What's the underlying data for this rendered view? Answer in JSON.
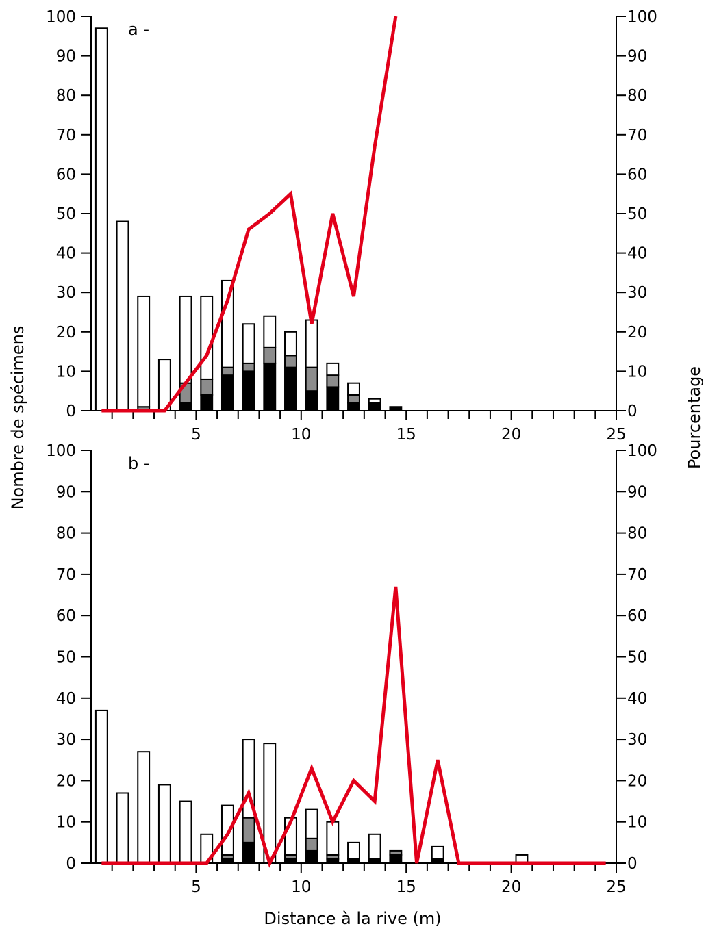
{
  "figure": {
    "ylabel_left": "Nombre de spécimens",
    "ylabel_right": "Pourcentage",
    "xlabel": "Distance à la rive (m)",
    "colors": {
      "line": "#e2001a",
      "bar_black": "#000000",
      "bar_gray": "#8c8c8c",
      "bar_white": "#ffffff"
    }
  },
  "chart_data": [
    {
      "type": "bar",
      "label": "a -",
      "x_ticks": [
        5,
        10,
        15,
        20,
        25
      ],
      "y_ticks": [
        0,
        10,
        20,
        30,
        40,
        50,
        60,
        70,
        80,
        90,
        100
      ],
      "xlim": [
        0,
        25
      ],
      "ylim_left": [
        0,
        100
      ],
      "ylim_right": [
        0,
        100
      ],
      "bars": {
        "x": [
          0.5,
          1.5,
          2.5,
          3.5,
          4.5,
          5.5,
          6.5,
          7.5,
          8.5,
          9.5,
          10.5,
          11.5,
          12.5,
          13.5,
          14.5,
          15.5,
          16.5,
          17.5,
          18.5,
          19.5,
          20.5,
          21.5,
          22.5,
          23.5,
          24.5
        ],
        "black": [
          0,
          0,
          0,
          0,
          2,
          4,
          9,
          10,
          12,
          11,
          5,
          6,
          2,
          2,
          1,
          0,
          0,
          0,
          0,
          0,
          0,
          0,
          0,
          0,
          0
        ],
        "gray": [
          0,
          0,
          1,
          0,
          5,
          4,
          2,
          2,
          4,
          3,
          6,
          3,
          2,
          0,
          0,
          0,
          0,
          0,
          0,
          0,
          0,
          0,
          0,
          0,
          0
        ],
        "white": [
          97,
          48,
          28,
          13,
          22,
          21,
          22,
          10,
          8,
          6,
          12,
          3,
          3,
          1,
          0,
          0,
          0,
          0,
          0,
          0,
          0,
          0,
          0,
          0,
          0
        ]
      },
      "line": {
        "x": [
          0.5,
          1.5,
          2.5,
          3.5,
          4.5,
          5.5,
          6.5,
          7.5,
          8.5,
          9.5,
          10.5,
          11.5,
          12.5,
          13.5,
          14.5
        ],
        "y": [
          0,
          0,
          0,
          0,
          7,
          14,
          28,
          46,
          50,
          55,
          22,
          50,
          29,
          67,
          100
        ]
      }
    },
    {
      "type": "bar",
      "label": "b -",
      "x_ticks": [
        5,
        10,
        15,
        20,
        25
      ],
      "y_ticks": [
        0,
        10,
        20,
        30,
        40,
        50,
        60,
        70,
        80,
        90,
        100
      ],
      "xlim": [
        0,
        25
      ],
      "ylim_left": [
        0,
        100
      ],
      "ylim_right": [
        0,
        100
      ],
      "bars": {
        "x": [
          0.5,
          1.5,
          2.5,
          3.5,
          4.5,
          5.5,
          6.5,
          7.5,
          8.5,
          9.5,
          10.5,
          11.5,
          12.5,
          13.5,
          14.5,
          15.5,
          16.5,
          17.5,
          18.5,
          19.5,
          20.5,
          21.5,
          22.5,
          23.5,
          24.5
        ],
        "black": [
          0,
          0,
          0,
          0,
          0,
          0,
          1,
          5,
          0,
          1,
          3,
          1,
          1,
          1,
          2,
          0,
          1,
          0,
          0,
          0,
          0,
          0,
          0,
          0,
          0
        ],
        "gray": [
          0,
          0,
          0,
          0,
          0,
          0,
          1,
          6,
          0,
          1,
          3,
          1,
          0,
          0,
          1,
          0,
          0,
          0,
          0,
          0,
          0,
          0,
          0,
          0,
          0
        ],
        "white": [
          37,
          17,
          27,
          19,
          15,
          7,
          12,
          19,
          29,
          9,
          7,
          8,
          4,
          6,
          0,
          0,
          3,
          0,
          0,
          0,
          2,
          0,
          0,
          0,
          0
        ]
      },
      "line": {
        "x": [
          0.5,
          1.5,
          2.5,
          3.5,
          4.5,
          5.5,
          6.5,
          7.5,
          8.5,
          9.5,
          10.5,
          11.5,
          12.5,
          13.5,
          14.5,
          15.5,
          16.5,
          17.5,
          18.5,
          19.5,
          20.5,
          21.5,
          22.5,
          23.5,
          24.5
        ],
        "y": [
          0,
          0,
          0,
          0,
          0,
          0,
          7,
          17,
          0,
          10,
          23,
          10,
          20,
          15,
          67,
          0,
          25,
          0,
          0,
          0,
          0,
          0,
          0,
          0,
          0
        ]
      }
    }
  ]
}
